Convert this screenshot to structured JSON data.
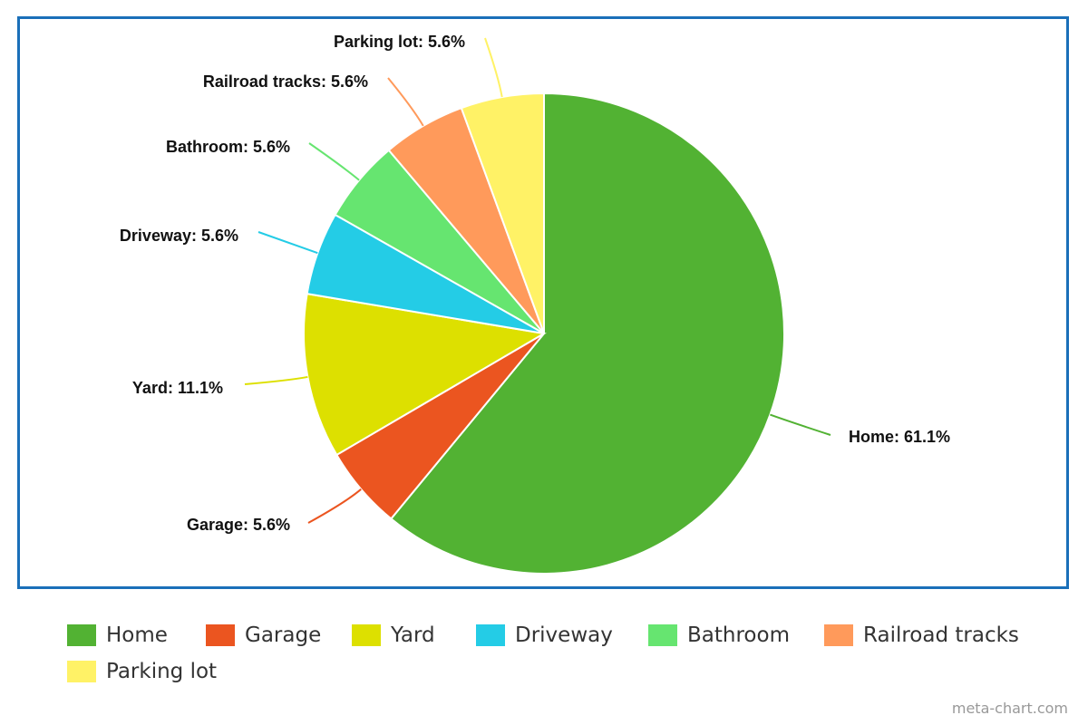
{
  "chart_data": {
    "type": "pie",
    "slices": [
      {
        "name": "Home",
        "value": 61.1,
        "color": "#52b233",
        "label": "Home: 61.1%"
      },
      {
        "name": "Garage",
        "value": 5.6,
        "color": "#eb5520",
        "label": "Garage: 5.6%"
      },
      {
        "name": "Yard",
        "value": 11.1,
        "color": "#dde000",
        "label": "Yard: 11.1%"
      },
      {
        "name": "Driveway",
        "value": 5.6,
        "color": "#24cce6",
        "label": "Driveway: 5.6%"
      },
      {
        "name": "Bathroom",
        "value": 5.6,
        "color": "#66e570",
        "label": "Bathroom: 5.6%"
      },
      {
        "name": "Railroad tracks",
        "value": 5.6,
        "color": "#ff9a5b",
        "label": "Railroad tracks: 5.6%"
      },
      {
        "name": "Parking lot",
        "value": 5.6,
        "color": "#fff266",
        "label": "Parking lot: 5.6%"
      }
    ],
    "legend_position": "bottom",
    "start_angle": "12 o'clock",
    "direction": "clockwise"
  },
  "frame_color": "#1a6fb9",
  "credit": "meta-chart.com"
}
